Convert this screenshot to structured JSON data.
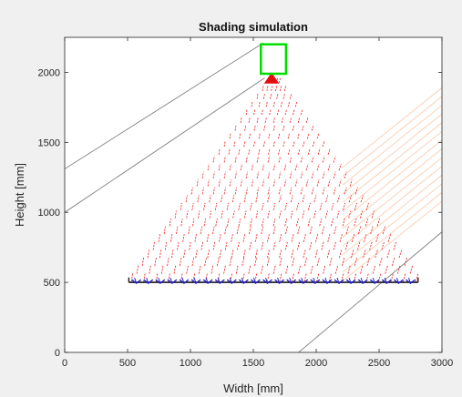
{
  "chart_data": {
    "type": "line",
    "title": "Shading simulation",
    "xlabel": "Width [mm]",
    "ylabel": "Height [mm]",
    "xlim": [
      0,
      3000
    ],
    "ylim": [
      0,
      2250
    ],
    "xticks": [
      0,
      500,
      1000,
      1500,
      2000,
      2500,
      3000
    ],
    "yticks": [
      0,
      500,
      1000,
      1500,
      2000
    ],
    "grid": false,
    "colors": {
      "sun_box": "#00dd00",
      "shading_lines": "#ee1c1c",
      "light_rays": "#f5c8a8",
      "boundary_lines": "#7f7f7f",
      "panel_base": "#1a1a1a",
      "panel_arrows": "#1f1fbf",
      "source_fan": "#e01010"
    },
    "source_box": {
      "x": [
        1560,
        1760
      ],
      "y": [
        1990,
        2200
      ]
    },
    "source_fan": {
      "apex": [
        1645,
        2000
      ],
      "base_y": 1920,
      "half_width": 60
    },
    "shading_fan": {
      "apex": [
        1660,
        1980
      ],
      "base_y": 505,
      "base_x_range": [
        530,
        2790
      ],
      "rows": 26,
      "dash_slope_dx_per_dy": 0.26
    },
    "panel": {
      "y": 500,
      "x_range": [
        510,
        2810
      ],
      "arrow_count": 24,
      "end_tick_height": 35
    },
    "boundary_lines": [
      {
        "x": [
          0,
          1580
        ],
        "y": [
          1310,
          2210
        ]
      },
      {
        "x": [
          0,
          1590
        ],
        "y": [
          1000,
          1960
        ]
      },
      {
        "x": [
          1860,
          3000
        ],
        "y": [
          0,
          860
        ]
      }
    ],
    "light_rays": {
      "count": 14,
      "slope": 0.66,
      "top_start": [
        2210,
        1320
      ],
      "top_end": [
        3000,
        1890
      ],
      "bottom_start": [
        2210,
        510
      ],
      "bottom_end": [
        3000,
        1080
      ],
      "band_spacing": 40
    }
  }
}
